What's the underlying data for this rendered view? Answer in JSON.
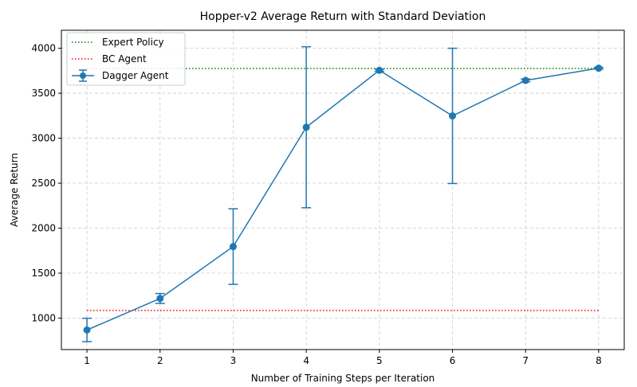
{
  "chart_data": {
    "type": "line",
    "title": "Hopper-v2 Average Return with Standard Deviation",
    "xlabel": "Number of Training Steps per Iteration",
    "ylabel": "Average Return",
    "xlim": [
      0.65,
      8.35
    ],
    "ylim": [
      650,
      4200
    ],
    "x_ticks": [
      1,
      2,
      3,
      4,
      5,
      6,
      7,
      8
    ],
    "y_ticks": [
      1000,
      1500,
      2000,
      2500,
      3000,
      3500,
      4000
    ],
    "grid": true,
    "legend_position": "top-left",
    "reference_lines": [
      {
        "name": "Expert Policy",
        "y": 3775,
        "x_range": [
          1,
          8
        ],
        "color": "#008000",
        "style": "dotted"
      },
      {
        "name": "BC Agent",
        "y": 1085,
        "x_range": [
          1,
          8
        ],
        "color": "#ff0000",
        "style": "dotted"
      }
    ],
    "series": [
      {
        "name": "Dagger Agent",
        "color": "#1f77b4",
        "x": [
          1,
          2,
          3,
          4,
          5,
          6,
          7,
          8
        ],
        "y": [
          868,
          1218,
          1795,
          3122,
          3755,
          3248,
          3642,
          3778
        ],
        "yerr": [
          130,
          55,
          420,
          895,
          12,
          752,
          16,
          10
        ]
      }
    ]
  }
}
